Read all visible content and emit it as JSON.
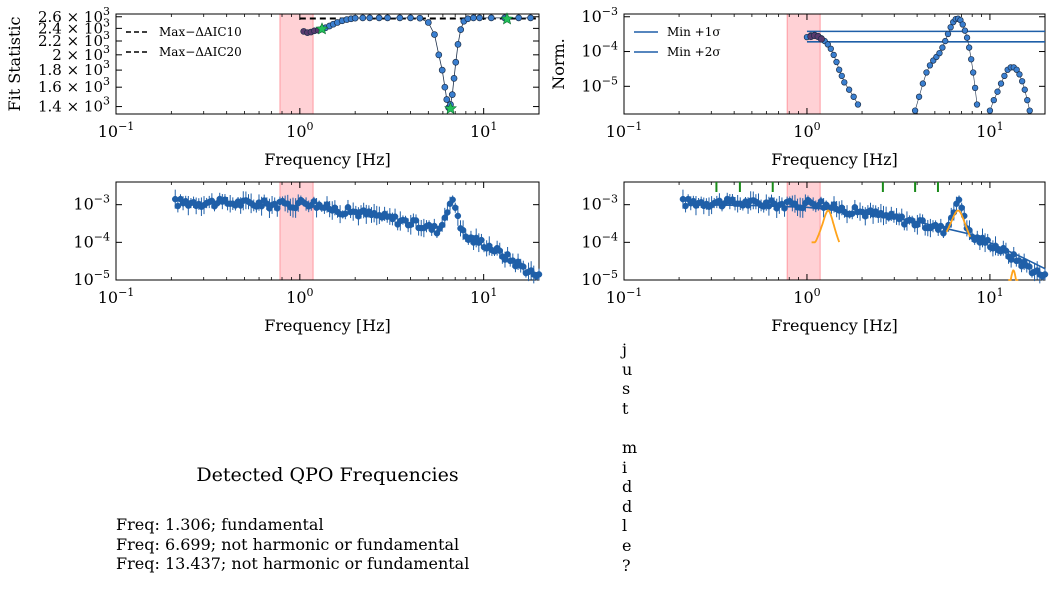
{
  "colors": {
    "data": "#1f5fa8",
    "marker_fill": "#3a7fd0",
    "marker_edge": "#1c2f4a",
    "band": "#ff9aa2",
    "qpo_model": "#ffa31a",
    "marks": "#1a8a1a",
    "purple": "#5a3a6e",
    "green_star": "#22c05a"
  },
  "chart_data": [
    {
      "type": "scatter",
      "id": "fit-statistic",
      "xscale": "log",
      "yscale": "log",
      "xlabel": "Frequency [Hz]",
      "ylabel": "Fit Statistic",
      "xlim": [
        0.1,
        20
      ],
      "ylim": [
        1330,
        2650
      ],
      "xticks": [
        "10^-1",
        "10^0",
        "10^1"
      ],
      "yticks": [
        "1.4 × 10^3",
        "1.6 × 10^3",
        "1.8 × 10^3",
        "2 × 10^3",
        "2.2 × 10^3",
        "2.4 × 10^3",
        "2.6 × 10^3"
      ],
      "ytick_values": [
        1400,
        1600,
        1800,
        2000,
        2200,
        2400,
        2600
      ],
      "shaded_band": [
        0.78,
        1.18
      ],
      "legend": {
        "position": "top-left",
        "entries": [
          "Max−ΔAIC10",
          "Max−ΔAIC20"
        ]
      },
      "hlines": [
        {
          "y": 2570,
          "x_start": 1.0,
          "style": "dashed"
        }
      ],
      "points": {
        "x": [
          1.05,
          1.1,
          1.15,
          1.2,
          1.26,
          1.32,
          1.38,
          1.45,
          1.52,
          1.6,
          1.7,
          1.8,
          1.9,
          2.0,
          2.2,
          2.4,
          2.7,
          3.0,
          3.5,
          4.0,
          4.5,
          5.0,
          5.4,
          5.7,
          5.95,
          6.15,
          6.3,
          6.45,
          6.6,
          6.75,
          6.9,
          7.05,
          7.25,
          7.5,
          7.8,
          8.2,
          8.8,
          9.5,
          11.0,
          13.0,
          15.5,
          18.0
        ],
        "y": [
          2350,
          2330,
          2340,
          2360,
          2370,
          2390,
          2410,
          2440,
          2470,
          2500,
          2530,
          2550,
          2565,
          2575,
          2580,
          2580,
          2580,
          2580,
          2580,
          2580,
          2575,
          2500,
          2300,
          2000,
          1800,
          1600,
          1470,
          1390,
          1420,
          1520,
          1700,
          1900,
          2150,
          2380,
          2520,
          2565,
          2580,
          2580,
          2580,
          2580,
          2580,
          2580
        ]
      },
      "stars": {
        "x": [
          1.32,
          6.6,
          13.4
        ],
        "y": [
          2390,
          1380,
          2560
        ]
      }
    },
    {
      "type": "scatter",
      "id": "normalized",
      "xscale": "log",
      "yscale": "log",
      "xlabel": "Frequency [Hz]",
      "ylabel": "Norm.",
      "xlim": [
        0.1,
        20
      ],
      "ylim": [
        1.6e-06,
        0.0012
      ],
      "xticks": [
        "10^-1",
        "10^0",
        "10^1"
      ],
      "yticks": [
        "10^-5",
        "10^-4",
        "10^-3"
      ],
      "ytick_values": [
        1e-05,
        0.0001,
        0.001
      ],
      "shaded_band": [
        0.78,
        1.18
      ],
      "legend": {
        "position": "top-left",
        "entries": [
          "Min +1σ",
          "Min +2σ"
        ]
      },
      "hlines": [
        {
          "y": 0.00038,
          "x_start": 1.0,
          "style": "solid"
        },
        {
          "y": 0.00019,
          "x_start": 1.0,
          "style": "solid"
        }
      ],
      "segments": [
        {
          "x": [
            1.0,
            1.05,
            1.1,
            1.15,
            1.2,
            1.25,
            1.3,
            1.35,
            1.4,
            1.45,
            1.5,
            1.55,
            1.6,
            1.7,
            1.8,
            1.9
          ],
          "y": [
            0.00026,
            0.00029,
            0.0003,
            0.00028,
            0.00024,
            0.0002,
            0.00016,
            0.00012,
            8e-05,
            5e-05,
            3e-05,
            2e-05,
            1.3e-05,
            8e-06,
            5e-06,
            3e-06
          ]
        },
        {
          "x": [
            3.9,
            4.1,
            4.3,
            4.5,
            4.7,
            4.9,
            5.1,
            5.3,
            5.5,
            5.7,
            5.9,
            6.1,
            6.3,
            6.5,
            6.7,
            6.9,
            7.1,
            7.3,
            7.5,
            7.7,
            7.9,
            8.1,
            8.3,
            8.5
          ],
          "y": [
            2e-06,
            5e-06,
            1.2e-05,
            2.5e-05,
            4e-05,
            5.5e-05,
            7e-05,
            9e-05,
            0.00013,
            0.0002,
            0.00032,
            0.0005,
            0.0007,
            0.00085,
            0.00088,
            0.0008,
            0.0006,
            0.0004,
            0.00025,
            0.00013,
            6e-05,
            2.5e-05,
            9e-06,
            3e-06
          ]
        },
        {
          "x": [
            10.0,
            10.5,
            11.0,
            11.5,
            12.0,
            12.5,
            13.0,
            13.5,
            14.0,
            14.5,
            15.0,
            15.5,
            16.0,
            16.5
          ],
          "y": [
            2e-06,
            4e-06,
            7e-06,
            1.2e-05,
            2e-05,
            3e-05,
            3.5e-05,
            3.5e-05,
            3e-05,
            2.2e-05,
            1.4e-05,
            8e-06,
            4e-06,
            2e-06
          ]
        }
      ],
      "purple_points": {
        "x": [
          1.05,
          1.1,
          1.15,
          1.2
        ],
        "y": [
          0.00027,
          0.00029,
          0.00027,
          0.00023
        ]
      }
    },
    {
      "type": "scatter",
      "id": "power-spectrum",
      "xscale": "log",
      "yscale": "log",
      "xlabel": "Frequency [Hz]",
      "ylabel": "",
      "xlim": [
        0.1,
        20
      ],
      "ylim": [
        1e-05,
        0.004
      ],
      "xticks": [
        "10^-1",
        "10^0",
        "10^1"
      ],
      "yticks": [
        "10^-5",
        "10^-4",
        "10^-3"
      ],
      "ytick_values": [
        1e-05,
        0.0001,
        0.001
      ],
      "shaded_band": [
        0.78,
        1.18
      ],
      "series": [
        {
          "name": "",
          "x_start": 0.21,
          "x_end": 20,
          "n": 140
        }
      ]
    },
    {
      "type": "scatter",
      "id": "model-fit",
      "xscale": "log",
      "yscale": "log",
      "xlabel": "Frequency [Hz]",
      "ylabel": "",
      "xlim": [
        0.1,
        20
      ],
      "ylim": [
        1e-05,
        0.004
      ],
      "xticks": [
        "10^-1",
        "10^0",
        "10^1"
      ],
      "yticks": [
        "10^-5",
        "10^-4",
        "10^-3"
      ],
      "ytick_values": [
        1e-05,
        0.0001,
        0.001
      ],
      "shaded_band": [
        0.78,
        1.18
      ],
      "series": [
        {
          "name": "",
          "x_start": 0.21,
          "x_end": 20,
          "n": 140
        }
      ],
      "continuum": {
        "x": [
          0.21,
          0.5,
          1.0,
          2.0,
          4.0,
          8.0,
          15.0,
          20.0
        ],
        "y": [
          0.001,
          0.00095,
          0.00085,
          0.0006,
          0.00035,
          0.00016,
          4e-05,
          2e-05
        ]
      },
      "qpo_components": [
        {
          "center": 1.306,
          "width": 0.08,
          "peak": 0.0007,
          "floor": 0.0001,
          "range": [
            1.06,
            1.5
          ]
        },
        {
          "center": 6.699,
          "width": 0.55,
          "peak": 0.0007,
          "floor": 0.0001,
          "range": [
            5.8,
            7.8
          ]
        },
        {
          "center": 13.437,
          "width": 0.5,
          "peak": 1.8e-05,
          "floor": 1e-05,
          "range": [
            12.6,
            14.3
          ]
        }
      ],
      "top_marks": [
        0.32,
        0.43,
        0.65,
        2.6,
        3.9,
        5.2
      ]
    }
  ],
  "qpo": {
    "title": "Detected QPO Frequencies",
    "lines": [
      "Freq: 1.306; fundamental",
      "Freq: 6.699; not harmonic or fundamental",
      "Freq: 13.437; not harmonic or fundamental"
    ]
  },
  "side_text": [
    "j",
    "u",
    "s",
    "t",
    "",
    "m",
    "i",
    "d",
    "d",
    "l",
    "e",
    "?"
  ]
}
